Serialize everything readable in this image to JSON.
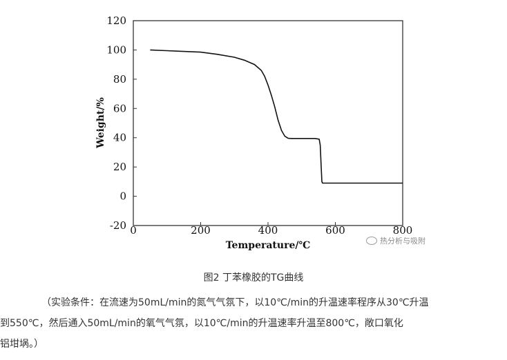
{
  "chart_data": {
    "type": "line",
    "title": "",
    "xlabel": "Temperature/℃",
    "ylabel": "Weight/%",
    "xlim": [
      0,
      800
    ],
    "ylim": [
      -20,
      120
    ],
    "xticks": [
      "0",
      "200",
      "400",
      "600",
      "800"
    ],
    "yticks": [
      "120",
      "100",
      "80",
      "60",
      "40",
      "20",
      "0",
      "-20"
    ],
    "grid": false,
    "legend": "none",
    "series": [
      {
        "color": "#111111",
        "x": [
          50,
          100,
          150,
          200,
          250,
          300,
          330,
          360,
          380,
          390,
          400,
          410,
          420,
          430,
          440,
          450,
          460,
          470,
          480,
          500,
          520,
          540,
          552,
          555,
          558,
          560,
          562,
          565,
          600,
          650,
          700,
          750,
          800
        ],
        "y": [
          100,
          99.5,
          99,
          98.5,
          97,
          95,
          93,
          90,
          86,
          82,
          76,
          69,
          61,
          52,
          45,
          41,
          39.6,
          39.5,
          39.5,
          39.5,
          39.5,
          39.5,
          39,
          35,
          20,
          10,
          9,
          9,
          9,
          9,
          9,
          9,
          9
        ]
      }
    ]
  },
  "watermark": {
    "text": "热分析与吸附"
  },
  "caption": {
    "text": "图2  丁苯橡胶的TG曲线"
  },
  "note": {
    "line1": "（实验条件：在流速为50mL/min的氮气气氛下，以10℃/min的升温速率程序从30℃升温",
    "line2": "到550℃，然后通入50mL/min的氧气气氛，以10℃/min的升温速率升温至800℃，敞口氧化",
    "line3": "铝坩埚。）"
  }
}
